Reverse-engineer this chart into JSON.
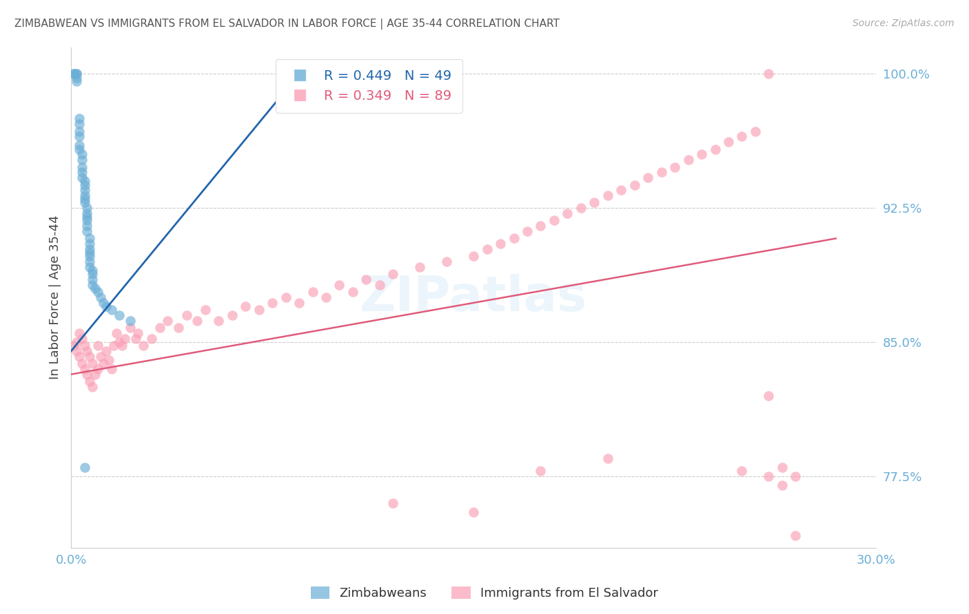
{
  "title": "ZIMBABWEAN VS IMMIGRANTS FROM EL SALVADOR IN LABOR FORCE | AGE 35-44 CORRELATION CHART",
  "source": "Source: ZipAtlas.com",
  "ylabel": "In Labor Force | Age 35-44",
  "xlim": [
    0.0,
    0.3
  ],
  "ylim": [
    0.735,
    1.015
  ],
  "yticks": [
    0.775,
    0.85,
    0.925,
    1.0
  ],
  "ytick_labels": [
    "77.5%",
    "85.0%",
    "92.5%",
    "100.0%"
  ],
  "xticks": [
    0.0,
    0.05,
    0.1,
    0.15,
    0.2,
    0.25,
    0.3
  ],
  "xtick_labels": [
    "0.0%",
    "",
    "",
    "",
    "",
    "",
    "30.0%"
  ],
  "blue_R": 0.449,
  "blue_N": 49,
  "pink_R": 0.349,
  "pink_N": 89,
  "blue_color": "#6baed6",
  "pink_color": "#fa9fb5",
  "blue_line_color": "#2166ac",
  "pink_line_color": "#e05a7a",
  "axis_label_color": "#6baed6",
  "background_color": "#ffffff",
  "grid_color": "#cccccc",
  "blue_scatter_x": [
    0.001,
    0.001,
    0.002,
    0.002,
    0.002,
    0.002,
    0.003,
    0.003,
    0.003,
    0.003,
    0.003,
    0.003,
    0.004,
    0.004,
    0.004,
    0.004,
    0.004,
    0.005,
    0.005,
    0.005,
    0.005,
    0.005,
    0.005,
    0.006,
    0.006,
    0.006,
    0.006,
    0.006,
    0.006,
    0.007,
    0.007,
    0.007,
    0.007,
    0.007,
    0.007,
    0.007,
    0.008,
    0.008,
    0.008,
    0.008,
    0.009,
    0.01,
    0.011,
    0.012,
    0.013,
    0.015,
    0.018,
    0.022,
    0.005
  ],
  "blue_scatter_y": [
    1.0,
    1.0,
    1.0,
    1.0,
    0.998,
    0.996,
    0.975,
    0.972,
    0.968,
    0.965,
    0.96,
    0.958,
    0.955,
    0.952,
    0.948,
    0.945,
    0.942,
    0.94,
    0.938,
    0.935,
    0.932,
    0.93,
    0.928,
    0.925,
    0.922,
    0.92,
    0.918,
    0.915,
    0.912,
    0.908,
    0.905,
    0.902,
    0.9,
    0.898,
    0.895,
    0.892,
    0.89,
    0.888,
    0.885,
    0.882,
    0.88,
    0.878,
    0.875,
    0.872,
    0.87,
    0.868,
    0.865,
    0.862,
    0.78
  ],
  "pink_scatter_x": [
    0.001,
    0.002,
    0.002,
    0.003,
    0.003,
    0.004,
    0.004,
    0.005,
    0.005,
    0.006,
    0.006,
    0.007,
    0.007,
    0.008,
    0.008,
    0.009,
    0.01,
    0.01,
    0.011,
    0.012,
    0.013,
    0.014,
    0.015,
    0.016,
    0.017,
    0.018,
    0.019,
    0.02,
    0.022,
    0.024,
    0.025,
    0.027,
    0.03,
    0.033,
    0.036,
    0.04,
    0.043,
    0.047,
    0.05,
    0.055,
    0.06,
    0.065,
    0.07,
    0.075,
    0.08,
    0.085,
    0.09,
    0.095,
    0.1,
    0.105,
    0.11,
    0.115,
    0.12,
    0.13,
    0.14,
    0.15,
    0.155,
    0.16,
    0.165,
    0.17,
    0.175,
    0.18,
    0.185,
    0.19,
    0.195,
    0.2,
    0.205,
    0.21,
    0.215,
    0.22,
    0.225,
    0.23,
    0.235,
    0.24,
    0.245,
    0.25,
    0.255,
    0.26,
    0.265,
    0.27,
    0.12,
    0.15,
    0.175,
    0.2,
    0.25,
    0.26,
    0.26,
    0.265,
    0.27
  ],
  "pink_scatter_y": [
    0.848,
    0.845,
    0.85,
    0.842,
    0.855,
    0.838,
    0.852,
    0.835,
    0.848,
    0.832,
    0.845,
    0.828,
    0.842,
    0.825,
    0.838,
    0.832,
    0.835,
    0.848,
    0.842,
    0.838,
    0.845,
    0.84,
    0.835,
    0.848,
    0.855,
    0.85,
    0.848,
    0.852,
    0.858,
    0.852,
    0.855,
    0.848,
    0.852,
    0.858,
    0.862,
    0.858,
    0.865,
    0.862,
    0.868,
    0.862,
    0.865,
    0.87,
    0.868,
    0.872,
    0.875,
    0.872,
    0.878,
    0.875,
    0.882,
    0.878,
    0.885,
    0.882,
    0.888,
    0.892,
    0.895,
    0.898,
    0.902,
    0.905,
    0.908,
    0.912,
    0.915,
    0.918,
    0.922,
    0.925,
    0.928,
    0.932,
    0.935,
    0.938,
    0.942,
    0.945,
    0.948,
    0.952,
    0.955,
    0.958,
    0.962,
    0.965,
    0.968,
    0.82,
    0.77,
    0.775,
    0.76,
    0.755,
    0.778,
    0.785,
    0.778,
    0.775,
    1.0,
    0.78,
    0.742
  ],
  "blue_trend_x": [
    0.0,
    0.085
  ],
  "blue_trend_y": [
    0.845,
    1.0
  ],
  "pink_trend_x": [
    0.0,
    0.285
  ],
  "pink_trend_y": [
    0.832,
    0.908
  ]
}
